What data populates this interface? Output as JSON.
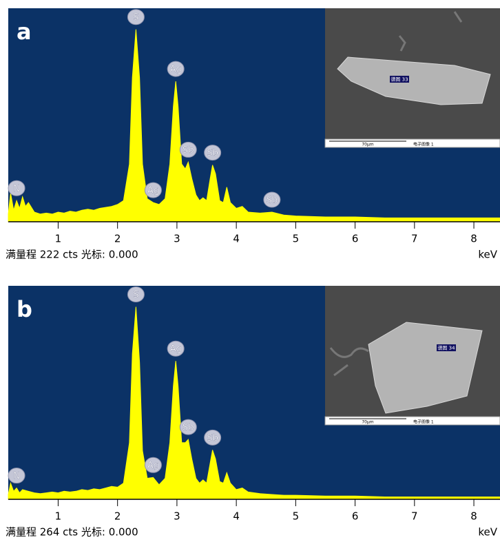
{
  "chart_data": [
    {
      "type": "area",
      "panel_label": "a",
      "color": "#ffff00",
      "background": "#0b3266",
      "x": [
        0.16,
        0.2,
        0.25,
        0.3,
        0.35,
        0.4,
        0.45,
        0.5,
        0.6,
        0.7,
        0.8,
        0.9,
        1.0,
        1.1,
        1.2,
        1.3,
        1.4,
        1.5,
        1.6,
        1.7,
        1.8,
        1.9,
        2.0,
        2.1,
        2.2,
        2.25,
        2.31,
        2.37,
        2.42,
        2.5,
        2.6,
        2.7,
        2.8,
        2.88,
        2.94,
        2.98,
        3.02,
        3.08,
        3.14,
        3.19,
        3.25,
        3.32,
        3.38,
        3.44,
        3.5,
        3.56,
        3.6,
        3.65,
        3.72,
        3.78,
        3.84,
        3.9,
        4.0,
        4.1,
        4.2,
        4.4,
        4.6,
        4.8,
        5.0,
        5.5,
        6.0,
        6.5,
        7.0,
        7.5,
        8.0,
        8.44
      ],
      "values": [
        8,
        30,
        12,
        22,
        14,
        26,
        16,
        20,
        10,
        8,
        9,
        8,
        10,
        9,
        11,
        10,
        12,
        13,
        12,
        14,
        15,
        16,
        18,
        22,
        60,
        150,
        200,
        150,
        60,
        24,
        20,
        18,
        24,
        60,
        120,
        146,
        120,
        60,
        55,
        62,
        45,
        28,
        22,
        25,
        22,
        45,
        59,
        50,
        22,
        20,
        36,
        20,
        14,
        16,
        10,
        9,
        10,
        7,
        6,
        5,
        5,
        4,
        4,
        4,
        4,
        4
      ],
      "xlim": [
        0.16,
        8.44
      ],
      "ylim": [
        0,
        222
      ],
      "xticks": [
        1,
        2,
        3,
        4,
        5,
        6,
        7,
        8
      ],
      "annotations": [
        {
          "text": "N",
          "x": 0.3
        },
        {
          "text": "S",
          "x": 2.31
        },
        {
          "text": "Ag",
          "x": 2.6
        },
        {
          "text": "Ag",
          "x": 2.98
        },
        {
          "text": "Sb",
          "x": 3.19
        },
        {
          "text": "Sb",
          "x": 3.6
        },
        {
          "text": "Sb",
          "x": 4.6
        }
      ],
      "footer": "满量程 222 cts 光标: 0.000",
      "x_unit": "keV",
      "inset": {
        "spectrum_label": "谱图 33",
        "scale_label": "70μm",
        "image_label": "电子图像 1"
      }
    },
    {
      "type": "area",
      "panel_label": "b",
      "color": "#ffff00",
      "background": "#0b3266",
      "x": [
        0.16,
        0.2,
        0.25,
        0.3,
        0.35,
        0.4,
        0.5,
        0.6,
        0.7,
        0.8,
        0.9,
        1.0,
        1.1,
        1.2,
        1.3,
        1.4,
        1.5,
        1.6,
        1.7,
        1.8,
        1.9,
        2.0,
        2.1,
        2.2,
        2.25,
        2.31,
        2.37,
        2.42,
        2.5,
        2.6,
        2.7,
        2.8,
        2.88,
        2.94,
        2.98,
        3.02,
        3.08,
        3.14,
        3.19,
        3.25,
        3.32,
        3.38,
        3.44,
        3.5,
        3.56,
        3.6,
        3.65,
        3.72,
        3.78,
        3.84,
        3.9,
        4.0,
        4.1,
        4.2,
        4.4,
        4.6,
        4.8,
        5.0,
        5.5,
        6.0,
        6.5,
        7.0,
        7.5,
        8.0,
        8.44
      ],
      "values": [
        6,
        20,
        10,
        14,
        8,
        12,
        10,
        8,
        7,
        8,
        9,
        8,
        10,
        9,
        10,
        12,
        11,
        13,
        12,
        14,
        16,
        15,
        20,
        70,
        180,
        238,
        170,
        60,
        26,
        27,
        18,
        26,
        70,
        140,
        171,
        140,
        70,
        70,
        74,
        50,
        26,
        20,
        24,
        20,
        45,
        61,
        50,
        22,
        20,
        33,
        20,
        12,
        14,
        9,
        7,
        6,
        5,
        5,
        4,
        4,
        3,
        3,
        3,
        3,
        3
      ],
      "xlim": [
        0.16,
        8.44
      ],
      "ylim": [
        0,
        264
      ],
      "xticks": [
        1,
        2,
        3,
        4,
        5,
        6,
        7,
        8
      ],
      "annotations": [
        {
          "text": "N",
          "x": 0.3
        },
        {
          "text": "S",
          "x": 2.31
        },
        {
          "text": "Ag",
          "x": 2.6
        },
        {
          "text": "Ag",
          "x": 2.98
        },
        {
          "text": "Sb",
          "x": 3.19
        },
        {
          "text": "Sb",
          "x": 3.6
        }
      ],
      "footer": "满量程 264 cts 光标: 0.000",
      "x_unit": "keV",
      "inset": {
        "spectrum_label": "谱图 34",
        "scale_label": "70μm",
        "image_label": "电子图像 1"
      }
    }
  ]
}
